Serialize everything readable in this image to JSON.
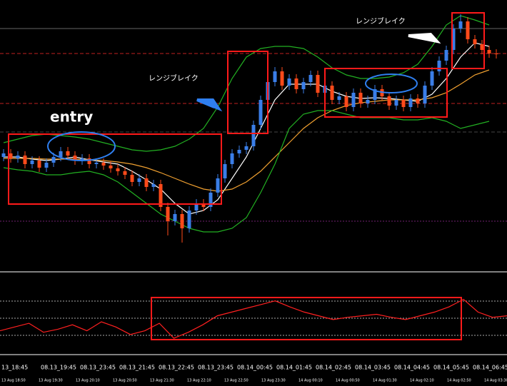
{
  "chart_data": [
    {
      "type": "candlestick",
      "ylim": [
        0,
        380
      ],
      "up_color": "#3a7ee8",
      "down_color": "#ff4a1a",
      "candles": {
        "open": [
          160,
          165,
          158,
          162,
          150,
          155,
          145,
          152,
          160,
          168,
          162,
          155,
          158,
          150,
          152,
          148,
          144,
          140,
          135,
          125,
          130,
          118,
          122,
          90,
          70,
          80,
          60,
          85,
          95,
          90,
          110,
          130,
          150,
          165,
          170,
          175,
          205,
          240,
          265,
          280,
          260,
          270,
          255,
          265,
          275,
          250,
          260,
          240,
          245,
          230,
          250,
          235,
          240,
          255,
          245,
          232,
          240,
          230,
          242,
          235,
          260,
          280,
          295,
          310,
          340,
          350,
          325,
          318,
          310,
          305
        ],
        "high": [
          171,
          171,
          168,
          168,
          161,
          161,
          158,
          166,
          174,
          174,
          168,
          164,
          164,
          158,
          158,
          154,
          150,
          146,
          141,
          136,
          136,
          128,
          128,
          96,
          86,
          86,
          91,
          101,
          101,
          116,
          136,
          156,
          171,
          176,
          181,
          211,
          246,
          271,
          286,
          286,
          276,
          276,
          271,
          281,
          281,
          266,
          266,
          251,
          251,
          256,
          256,
          246,
          261,
          261,
          251,
          246,
          246,
          248,
          248,
          266,
          286,
          301,
          316,
          346,
          360,
          356,
          331,
          324,
          316,
          311
        ],
        "low": [
          154,
          152,
          152,
          144,
          144,
          139,
          139,
          146,
          154,
          156,
          149,
          149,
          144,
          144,
          142,
          138,
          134,
          129,
          119,
          119,
          112,
          112,
          84,
          50,
          64,
          40,
          54,
          79,
          84,
          84,
          104,
          124,
          144,
          159,
          164,
          169,
          199,
          234,
          259,
          254,
          254,
          249,
          249,
          259,
          244,
          244,
          234,
          234,
          224,
          224,
          229,
          229,
          234,
          239,
          226,
          226,
          224,
          224,
          229,
          229,
          254,
          274,
          289,
          304,
          334,
          319,
          312,
          304,
          299,
          298
        ],
        "close": [
          165,
          158,
          162,
          150,
          155,
          145,
          152,
          160,
          168,
          162,
          155,
          158,
          150,
          152,
          148,
          144,
          140,
          135,
          125,
          130,
          118,
          122,
          90,
          70,
          80,
          60,
          85,
          95,
          90,
          110,
          130,
          150,
          165,
          170,
          175,
          205,
          240,
          265,
          280,
          260,
          270,
          255,
          265,
          275,
          250,
          260,
          240,
          245,
          230,
          250,
          235,
          240,
          255,
          245,
          232,
          240,
          230,
          242,
          235,
          260,
          280,
          295,
          310,
          340,
          350,
          325,
          318,
          310,
          305,
          304
        ]
      },
      "series": [
        {
          "color": "#ffffff",
          "values": [
            160,
            160,
            157,
            155,
            157,
            160,
            156,
            153,
            150,
            140,
            128,
            115,
            95,
            80,
            85,
            100,
            130,
            160,
            200,
            240,
            262,
            262,
            262,
            252,
            245,
            242,
            243,
            242,
            240,
            238,
            248,
            270,
            300,
            320,
            315
          ]
        },
        {
          "color": "#f0a030",
          "values": [
            158,
            158,
            158,
            157,
            157,
            157,
            156,
            155,
            153,
            150,
            145,
            138,
            130,
            122,
            115,
            112,
            115,
            125,
            140,
            160,
            180,
            200,
            215,
            225,
            232,
            236,
            238,
            240,
            240,
            240,
            243,
            250,
            262,
            275,
            282
          ]
        },
        {
          "color": "#22b022",
          "values": [
            180,
            185,
            190,
            192,
            190,
            188,
            185,
            180,
            175,
            170,
            168,
            170,
            175,
            185,
            200,
            230,
            270,
            300,
            312,
            315,
            315,
            312,
            300,
            285,
            275,
            270,
            270,
            272,
            278,
            290,
            315,
            345,
            358,
            352,
            345
          ]
        },
        {
          "color": "#22b022",
          "values": [
            145,
            142,
            140,
            135,
            135,
            138,
            140,
            135,
            125,
            110,
            95,
            80,
            70,
            60,
            55,
            55,
            60,
            75,
            110,
            150,
            200,
            220,
            225,
            225,
            220,
            215,
            215,
            215,
            212,
            212,
            215,
            210,
            200,
            205,
            210
          ]
        }
      ]
    },
    {
      "type": "line",
      "ylim": [
        0,
        105
      ],
      "color": "#ff2020",
      "values": [
        30,
        35,
        40,
        28,
        32,
        38,
        30,
        42,
        35,
        25,
        30,
        40,
        20,
        28,
        38,
        50,
        55,
        60,
        65,
        70,
        62,
        55,
        50,
        45,
        48,
        50,
        52,
        48,
        45,
        50,
        55,
        62,
        72,
        55,
        48,
        50
      ]
    }
  ],
  "annotations": {
    "entry": "entry",
    "range_break_left": "レンジブレイク",
    "range_break_right": "レンジブレイク"
  },
  "time_axis": {
    "labels": [
      "13_18:45",
      "08.13_19:45",
      "08.13_23:45",
      "08.13_21:45",
      "08.13_22:45",
      "08.13_23:45",
      "08.14_00:45",
      "08.14_01:45",
      "08.14_02:45",
      "08.14_03:45",
      "08.14_04:45",
      "08.14_05:45",
      "08.14_06:45"
    ],
    "sublabels": [
      "13 Aug 18:50",
      "13 Aug 19:30",
      "13 Aug 20:10",
      "13 Aug 20:50",
      "13 Aug 21:30",
      "13 Aug 22:10",
      "13 Aug 22:50",
      "13 Aug 23:30",
      "14 Aug 00:10",
      "14 Aug 00:50",
      "14 Aug 01:30",
      "14 Aug 02:10",
      "14 Aug 02:50",
      "14 Aug 03:30"
    ]
  }
}
